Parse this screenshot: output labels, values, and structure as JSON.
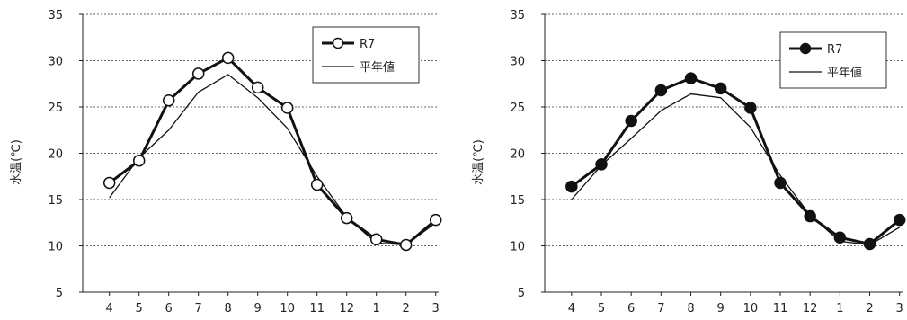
{
  "chart_data": [
    {
      "type": "line",
      "ylabel": "水温(℃)",
      "ylim": [
        5,
        35
      ],
      "yticks": [
        5,
        10,
        15,
        20,
        25,
        30,
        35
      ],
      "grid": "horizontal dashed",
      "legend_position": "top-right",
      "categories": [
        "4",
        "5",
        "6",
        "7",
        "8",
        "9",
        "10",
        "11",
        "12",
        "1",
        "2",
        "3"
      ],
      "series": [
        {
          "name": "R7",
          "marker": "open-circle",
          "values": [
            16.8,
            19.2,
            25.7,
            28.6,
            30.3,
            27.1,
            24.9,
            16.6,
            13.0,
            10.7,
            10.1,
            12.8
          ]
        },
        {
          "name": "平年値",
          "marker": "none",
          "values": [
            15.2,
            19.5,
            22.5,
            26.6,
            28.5,
            26.0,
            22.7,
            17.5,
            13.1,
            10.3,
            10.1,
            12.5
          ]
        }
      ]
    },
    {
      "type": "line",
      "ylabel": "水温(℃)",
      "ylim": [
        5,
        35
      ],
      "yticks": [
        5,
        10,
        15,
        20,
        25,
        30,
        35
      ],
      "grid": "horizontal dashed",
      "legend_position": "top-right",
      "categories": [
        "4",
        "5",
        "6",
        "7",
        "8",
        "9",
        "10",
        "11",
        "12",
        "1",
        "2",
        "3"
      ],
      "series": [
        {
          "name": "R7",
          "marker": "filled-circle",
          "values": [
            16.4,
            18.8,
            23.5,
            26.8,
            28.1,
            27.0,
            24.9,
            16.8,
            13.2,
            10.9,
            10.2,
            12.8
          ]
        },
        {
          "name": "平年値",
          "marker": "none",
          "values": [
            15.0,
            18.7,
            21.6,
            24.6,
            26.4,
            26.0,
            22.8,
            17.6,
            13.3,
            10.5,
            10.1,
            12.0
          ]
        }
      ]
    }
  ]
}
